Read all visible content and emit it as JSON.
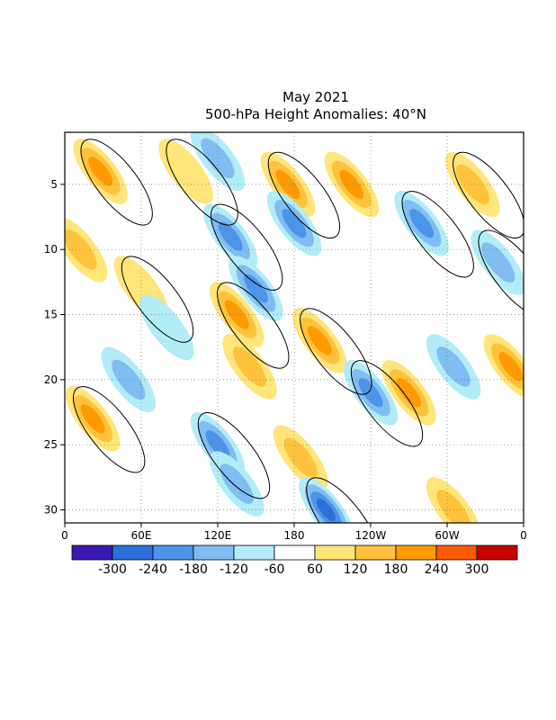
{
  "chart_data": {
    "type": "heatmap",
    "title": "May 2021",
    "subtitle": "500-hPa Height Anomalies: 40°N",
    "xlabel": "",
    "ylabel": "",
    "x_ticks": [
      {
        "lon": 0,
        "label": "0"
      },
      {
        "lon": 60,
        "label": "60E"
      },
      {
        "lon": 120,
        "label": "120E"
      },
      {
        "lon": 180,
        "label": "180"
      },
      {
        "lon": 240,
        "label": "120W"
      },
      {
        "lon": 300,
        "label": "60W"
      },
      {
        "lon": 360,
        "label": "0"
      }
    ],
    "y_ticks": [
      5,
      10,
      15,
      20,
      25,
      30
    ],
    "xlim": [
      0,
      360
    ],
    "ylim": [
      31,
      1
    ],
    "grid": true,
    "contour_levels": [
      -300,
      -240,
      -180,
      -120,
      -60,
      60,
      120,
      180,
      240,
      300
    ],
    "colorbar_labels": [
      "-300",
      "-240",
      "-180",
      "-120",
      "-60",
      "60",
      "120",
      "180",
      "240",
      "300"
    ],
    "colorbar_colors": [
      "#3a1ab0",
      "#2d6fd9",
      "#4c94e8",
      "#7fbdf2",
      "#b2ecf6",
      "#ffffff",
      "#ffe57a",
      "#ffc23c",
      "#ff9a00",
      "#ff5a00",
      "#c80000"
    ],
    "zero_contour_label": "0",
    "anomaly_features": [
      {
        "lon": 28,
        "day": 4,
        "value": 180
      },
      {
        "lon": 50,
        "day": 20,
        "value": -120
      },
      {
        "lon": 22,
        "day": 23,
        "value": 180
      },
      {
        "lon": 12,
        "day": 10,
        "value": 120
      },
      {
        "lon": 60,
        "day": 13,
        "value": 60
      },
      {
        "lon": 80,
        "day": 16,
        "value": -60
      },
      {
        "lon": 95,
        "day": 4,
        "value": 60
      },
      {
        "lon": 120,
        "day": 3,
        "value": -120
      },
      {
        "lon": 130,
        "day": 9,
        "value": -180
      },
      {
        "lon": 150,
        "day": 13,
        "value": -180
      },
      {
        "lon": 135,
        "day": 15,
        "value": 180
      },
      {
        "lon": 145,
        "day": 19,
        "value": 120
      },
      {
        "lon": 120,
        "day": 25,
        "value": -180
      },
      {
        "lon": 135,
        "day": 28,
        "value": -120
      },
      {
        "lon": 175,
        "day": 5,
        "value": 180
      },
      {
        "lon": 180,
        "day": 8,
        "value": -180
      },
      {
        "lon": 200,
        "day": 17,
        "value": 180
      },
      {
        "lon": 185,
        "day": 26,
        "value": 120
      },
      {
        "lon": 205,
        "day": 30,
        "value": -240
      },
      {
        "lon": 225,
        "day": 5,
        "value": 180
      },
      {
        "lon": 240,
        "day": 21,
        "value": -180
      },
      {
        "lon": 270,
        "day": 21,
        "value": 180
      },
      {
        "lon": 280,
        "day": 8,
        "value": -180
      },
      {
        "lon": 305,
        "day": 19,
        "value": -120
      },
      {
        "lon": 320,
        "day": 5,
        "value": 120
      },
      {
        "lon": 350,
        "day": 19,
        "value": 180
      },
      {
        "lon": 340,
        "day": 11,
        "value": -120
      },
      {
        "lon": 305,
        "day": 30,
        "value": 120
      }
    ]
  }
}
